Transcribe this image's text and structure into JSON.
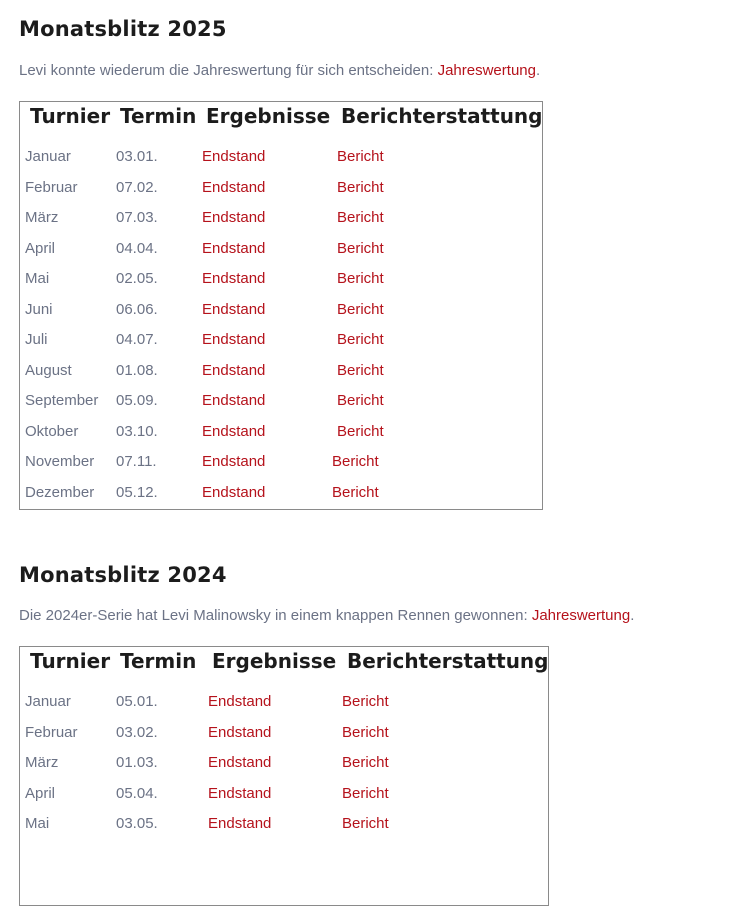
{
  "sections": [
    {
      "title": "Monatsblitz 2025",
      "intro": "Levi konnte wiederum die Jahreswertung für sich entscheiden: ",
      "intro_link": "Jahreswertung",
      "intro_end": ".",
      "headers": [
        "Turnier",
        "Termin",
        "Ergebnisse",
        "Berichterstattung"
      ],
      "rows": [
        {
          "month": "Januar",
          "date": "03.01.",
          "result": "Endstand",
          "report": "Bericht"
        },
        {
          "month": "Februar",
          "date": "07.02.",
          "result": "Endstand",
          "report": "Bericht"
        },
        {
          "month": "März",
          "date": "07.03.",
          "result": "Endstand",
          "report": "Bericht"
        },
        {
          "month": "April",
          "date": "04.04.",
          "result": "Endstand",
          "report": "Bericht"
        },
        {
          "month": "Mai",
          "date": "02.05.",
          "result": "Endstand",
          "report": "Bericht"
        },
        {
          "month": "Juni",
          "date": "06.06.",
          "result": "Endstand",
          "report": "Bericht"
        },
        {
          "month": "Juli",
          "date": "04.07.",
          "result": "Endstand",
          "report": "Bericht"
        },
        {
          "month": "August",
          "date": "01.08.",
          "result": "Endstand",
          "report": "Bericht"
        },
        {
          "month": "September",
          "date": "05.09.",
          "result": "Endstand",
          "report": "Bericht"
        },
        {
          "month": "Oktober",
          "date": "03.10.",
          "result": "Endstand",
          "report": "Bericht"
        },
        {
          "month": "November",
          "date": "07.11.",
          "result": "Endstand",
          "report": "Bericht"
        },
        {
          "month": "Dezember",
          "date": "05.12.",
          "result": "Endstand",
          "report": "Bericht"
        }
      ]
    },
    {
      "title": "Monatsblitz 2024",
      "intro": "Die 2024er-Serie hat Levi Malinowsky in einem knappen Rennen gewonnen: ",
      "intro_link": "Jahreswertung",
      "intro_end": ".",
      "headers": [
        "Turnier",
        "Termin",
        "Ergebnisse",
        "Berichterstattung"
      ],
      "rows": [
        {
          "month": "Januar",
          "date": "05.01.",
          "result": "Endstand",
          "report": "Bericht"
        },
        {
          "month": "Februar",
          "date": "03.02.",
          "result": "Endstand",
          "report": "Bericht"
        },
        {
          "month": "März",
          "date": "01.03.",
          "result": "Endstand",
          "report": "Bericht"
        },
        {
          "month": "April",
          "date": "05.04.",
          "result": "Endstand",
          "report": "Bericht"
        },
        {
          "month": "Mai",
          "date": "03.05.",
          "result": "Endstand",
          "report": "Bericht"
        }
      ]
    }
  ],
  "colors": {
    "text": "#6b7285",
    "link": "#b5121b",
    "heading": "#1c1c1c"
  }
}
